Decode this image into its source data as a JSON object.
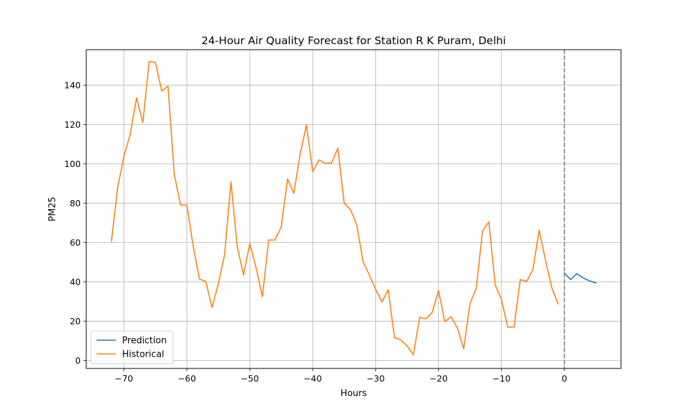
{
  "chart_data": {
    "type": "line",
    "title": "24-Hour Air Quality Forecast for Station R K Puram, Delhi",
    "xlabel": "Hours",
    "ylabel": "PM25",
    "xlim": [
      -76,
      9
    ],
    "ylim": [
      -4,
      158
    ],
    "xticks": [
      -70,
      -60,
      -50,
      -40,
      -30,
      -20,
      -10,
      0
    ],
    "xtick_labels": [
      "−70",
      "−60",
      "−50",
      "−40",
      "−30",
      "−20",
      "−10",
      "0"
    ],
    "yticks": [
      0,
      20,
      40,
      60,
      80,
      100,
      120,
      140
    ],
    "ytick_labels": [
      "0",
      "20",
      "40",
      "60",
      "80",
      "100",
      "120",
      "140"
    ],
    "grid": true,
    "legend_position": "lower-left",
    "vline": {
      "x": 0,
      "color": "#808080",
      "style": "dashed"
    },
    "series": [
      {
        "name": "Prediction",
        "color": "#1f77b4",
        "x": [
          0,
          1,
          2,
          3,
          4,
          5
        ],
        "y": [
          44.5,
          41.2,
          44.2,
          42.0,
          40.5,
          39.5
        ]
      },
      {
        "name": "Historical",
        "color": "#ff7f0e",
        "x": [
          -72,
          -71,
          -70,
          -69,
          -68,
          -67,
          -66,
          -65,
          -64,
          -63,
          -62,
          -61,
          -60,
          -59,
          -58,
          -57,
          -56,
          -55,
          -54,
          -53,
          -52,
          -51,
          -50,
          -49,
          -48,
          -47,
          -46,
          -45,
          -44,
          -43,
          -42,
          -41,
          -40,
          -39,
          -38,
          -37,
          -36,
          -35,
          -34,
          -33,
          -32,
          -31,
          -30,
          -29,
          -28,
          -27,
          -26,
          -25,
          -24,
          -23,
          -22,
          -21,
          -20,
          -19,
          -18,
          -17,
          -16,
          -15,
          -14,
          -13,
          -12,
          -11,
          -10,
          -9,
          -8,
          -7,
          -6,
          -5,
          -4,
          -3,
          -2,
          -1
        ],
        "y": [
          60.5,
          88,
          104,
          115,
          133.5,
          121,
          152,
          151.5,
          137,
          139.5,
          94.5,
          79,
          79,
          58,
          41.5,
          40.2,
          27,
          39,
          54,
          90.8,
          58,
          43.5,
          59.5,
          47,
          32.5,
          61.3,
          61.3,
          68,
          92.3,
          85,
          105,
          119.7,
          96,
          102,
          100.2,
          100.5,
          108,
          80,
          76.7,
          69,
          50.3,
          43.5,
          36.2,
          29.8,
          36,
          11.7,
          10.5,
          7.5,
          3,
          22,
          21.2,
          24.5,
          35.5,
          19.8,
          22.3,
          16.5,
          6,
          29,
          36.8,
          66,
          70.5,
          38.5,
          31,
          17,
          17,
          41.2,
          40.2,
          46.2,
          66.3,
          51,
          37,
          28.8
        ]
      }
    ]
  }
}
